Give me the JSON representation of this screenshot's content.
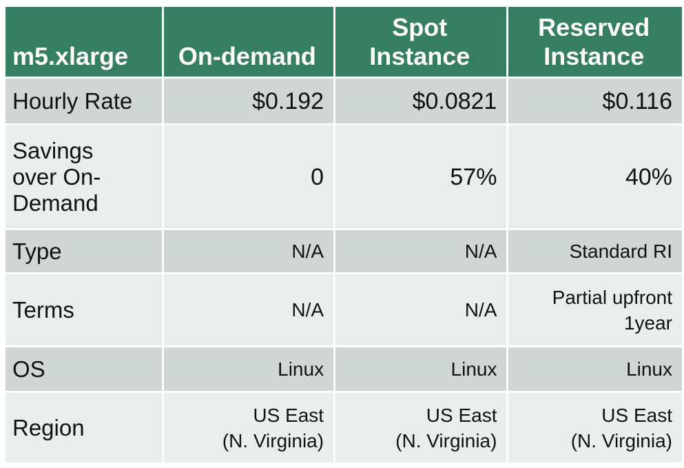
{
  "header": {
    "corner": "m5.xlarge",
    "columns": [
      [
        "On-demand"
      ],
      [
        "Spot",
        "Instance"
      ],
      [
        "Reserved",
        "Instance"
      ]
    ]
  },
  "rows": [
    {
      "label": [
        "Hourly Rate"
      ],
      "values": [
        [
          "$0.192"
        ],
        [
          "$0.0821"
        ],
        [
          "$0.116"
        ]
      ]
    },
    {
      "label": [
        "Savings",
        "over On-",
        "Demand"
      ],
      "values": [
        [
          "0"
        ],
        [
          "57%"
        ],
        [
          "40%"
        ]
      ]
    },
    {
      "label": [
        "Type"
      ],
      "values": [
        [
          "N/A"
        ],
        [
          "N/A"
        ],
        [
          "Standard RI"
        ]
      ]
    },
    {
      "label": [
        "Terms"
      ],
      "values": [
        [
          "N/A"
        ],
        [
          "N/A"
        ],
        [
          "Partial upfront",
          "1year"
        ]
      ]
    },
    {
      "label": [
        "OS"
      ],
      "values": [
        [
          "Linux"
        ],
        [
          "Linux"
        ],
        [
          "Linux"
        ]
      ]
    },
    {
      "label": [
        "Region"
      ],
      "values": [
        [
          "US East",
          "(N. Virginia)"
        ],
        [
          "US East",
          "(N. Virginia)"
        ],
        [
          "US East",
          "(N. Virginia)"
        ]
      ]
    }
  ]
}
